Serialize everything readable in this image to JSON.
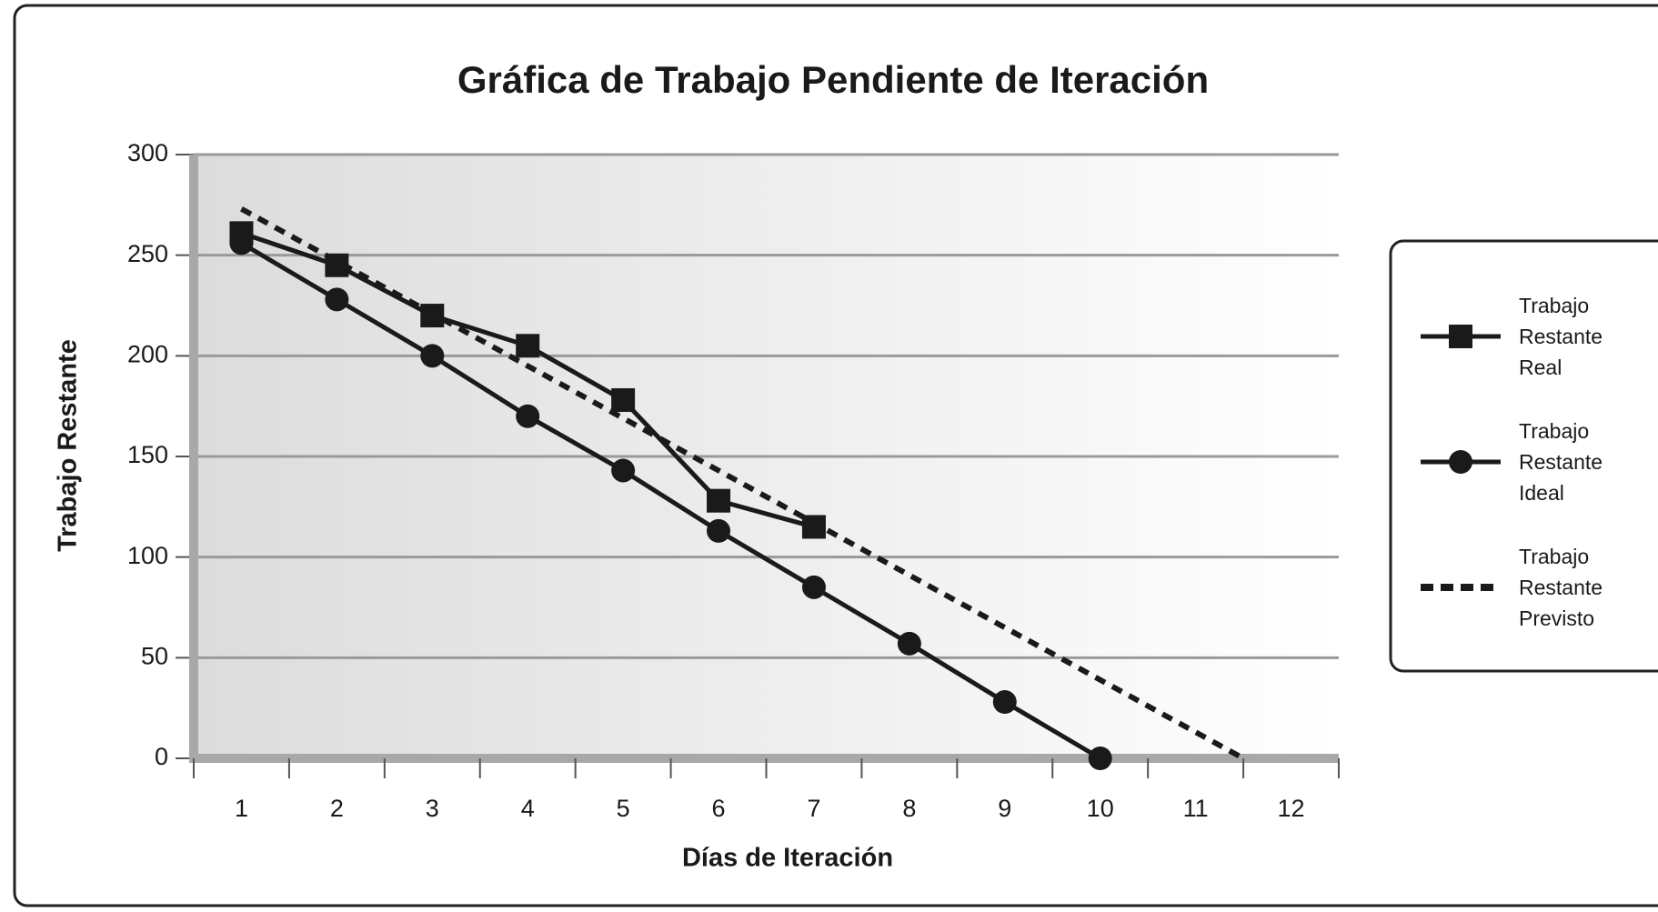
{
  "chart_data": {
    "type": "line",
    "title": "Gráfica de Trabajo Pendiente de Iteración",
    "x_label": "Días de Iteración",
    "y_label": "Trabajo Restante",
    "xlim": [
      0.5,
      12.5
    ],
    "xticks": [
      1,
      2,
      3,
      4,
      5,
      6,
      7,
      8,
      9,
      10,
      11,
      12
    ],
    "ylim": [
      0,
      300
    ],
    "yticks": [
      0,
      50,
      100,
      150,
      200,
      250,
      300
    ],
    "grid": true,
    "legend": "right",
    "series": [
      {
        "name": "Trabajo Restante Real",
        "color": "#1a1a1a",
        "marker": "square",
        "style": "solid",
        "x": [
          1,
          2,
          3,
          4,
          5,
          6,
          7
        ],
        "values": [
          261,
          245,
          220,
          205,
          178,
          128,
          115
        ]
      },
      {
        "name": "Trabajo Restante Ideal",
        "color": "#1a1a1a",
        "marker": "circle",
        "style": "solid",
        "x": [
          1,
          2,
          3,
          4,
          5,
          6,
          7,
          8,
          9,
          10
        ],
        "values": [
          256,
          228,
          200,
          170,
          143,
          113,
          85,
          57,
          28,
          0
        ]
      },
      {
        "name": "Trabajo Restante Previsto",
        "color": "#1a1a1a",
        "marker": "none",
        "style": "dashed",
        "x": [
          1,
          11.5
        ],
        "values": [
          273,
          0
        ]
      }
    ]
  }
}
